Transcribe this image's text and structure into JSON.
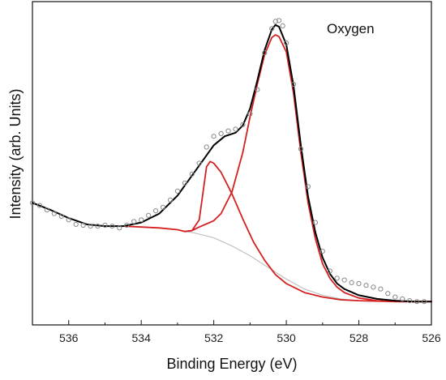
{
  "chart_data": {
    "type": "line",
    "title": "",
    "annotation": "Oxygen",
    "xlabel": "Binding Energy (eV)",
    "ylabel": "Intensity (arb. Units)",
    "xlim": [
      537,
      526
    ],
    "x_reversed": true,
    "ylim": [
      0,
      360
    ],
    "y_ticks_visible": false,
    "x_ticks": [
      536,
      534,
      532,
      530,
      528,
      526
    ],
    "x_tick_labels": [
      "536",
      "534",
      "532",
      "530",
      "528",
      "526"
    ],
    "grid": false,
    "legend": "none",
    "series": [
      {
        "role": "data-points",
        "style": "open-circles",
        "color": "#888888",
        "points": [
          [
            537.0,
            136
          ],
          [
            536.8,
            133
          ],
          [
            536.6,
            128
          ],
          [
            536.4,
            124
          ],
          [
            536.2,
            121
          ],
          [
            536.0,
            117
          ],
          [
            535.8,
            112
          ],
          [
            535.6,
            111
          ],
          [
            535.4,
            110
          ],
          [
            535.2,
            110
          ],
          [
            535.0,
            111
          ],
          [
            534.8,
            110
          ],
          [
            534.6,
            108
          ],
          [
            534.4,
            111
          ],
          [
            534.2,
            115
          ],
          [
            534.0,
            117
          ],
          [
            533.8,
            122
          ],
          [
            533.6,
            127
          ],
          [
            533.4,
            131
          ],
          [
            533.2,
            139
          ],
          [
            533.0,
            149
          ],
          [
            532.8,
            158
          ],
          [
            532.6,
            168
          ],
          [
            532.4,
            180
          ],
          [
            532.2,
            198
          ],
          [
            532.0,
            210
          ],
          [
            531.8,
            213
          ],
          [
            531.6,
            216
          ],
          [
            531.4,
            218
          ],
          [
            531.2,
            223
          ],
          [
            531.0,
            235
          ],
          [
            530.8,
            262
          ],
          [
            530.6,
            303
          ],
          [
            530.4,
            330
          ],
          [
            530.3,
            338
          ],
          [
            530.2,
            339
          ],
          [
            530.1,
            333
          ],
          [
            530.0,
            314
          ],
          [
            529.8,
            268
          ],
          [
            529.6,
            196
          ],
          [
            529.4,
            154
          ],
          [
            529.2,
            114
          ],
          [
            529.0,
            82
          ],
          [
            528.8,
            60
          ],
          [
            528.6,
            52
          ],
          [
            528.4,
            50
          ],
          [
            528.2,
            47
          ],
          [
            528.0,
            46
          ],
          [
            527.8,
            44
          ],
          [
            527.6,
            42
          ],
          [
            527.4,
            40
          ],
          [
            527.2,
            35
          ],
          [
            527.0,
            31
          ],
          [
            526.8,
            29
          ],
          [
            526.6,
            27
          ],
          [
            526.4,
            26
          ],
          [
            526.2,
            26
          ]
        ]
      },
      {
        "role": "envelope-fit",
        "color": "#000000",
        "points": [
          [
            537.0,
            136
          ],
          [
            536.5,
            128
          ],
          [
            536.0,
            119
          ],
          [
            535.5,
            112
          ],
          [
            535.0,
            110
          ],
          [
            534.5,
            110
          ],
          [
            534.0,
            114
          ],
          [
            533.5,
            124
          ],
          [
            533.0,
            144
          ],
          [
            532.5,
            172
          ],
          [
            532.0,
            200
          ],
          [
            531.7,
            210
          ],
          [
            531.4,
            214
          ],
          [
            531.2,
            222
          ],
          [
            531.0,
            241
          ],
          [
            530.8,
            272
          ],
          [
            530.6,
            306
          ],
          [
            530.4,
            329
          ],
          [
            530.3,
            334
          ],
          [
            530.2,
            332
          ],
          [
            530.0,
            312
          ],
          [
            529.8,
            266
          ],
          [
            529.6,
            200
          ],
          [
            529.4,
            143
          ],
          [
            529.2,
            103
          ],
          [
            529.0,
            75
          ],
          [
            528.8,
            57
          ],
          [
            528.6,
            46
          ],
          [
            528.4,
            40
          ],
          [
            528.0,
            33
          ],
          [
            527.5,
            29
          ],
          [
            527.0,
            27
          ],
          [
            526.5,
            26
          ],
          [
            526.0,
            26
          ]
        ]
      },
      {
        "role": "component-1",
        "color": "#d42020",
        "points": [
          [
            535.0,
            110
          ],
          [
            534.5,
            110
          ],
          [
            534.0,
            109
          ],
          [
            533.5,
            108
          ],
          [
            533.0,
            106
          ],
          [
            532.8,
            104
          ],
          [
            532.6,
            105
          ],
          [
            532.4,
            117
          ],
          [
            532.2,
            176
          ],
          [
            532.1,
            182
          ],
          [
            532.0,
            180
          ],
          [
            531.8,
            170
          ],
          [
            531.5,
            146
          ],
          [
            531.2,
            118
          ],
          [
            530.9,
            92
          ],
          [
            530.6,
            72
          ],
          [
            530.3,
            56
          ],
          [
            530.0,
            46
          ],
          [
            529.5,
            36
          ],
          [
            529.0,
            31
          ],
          [
            528.5,
            28
          ],
          [
            528.0,
            27
          ],
          [
            527.0,
            26
          ],
          [
            526.0,
            26
          ]
        ]
      },
      {
        "role": "component-2",
        "color": "#d42020",
        "points": [
          [
            532.8,
            104
          ],
          [
            532.6,
            105
          ],
          [
            532.4,
            109
          ],
          [
            532.0,
            116
          ],
          [
            531.8,
            124
          ],
          [
            531.5,
            148
          ],
          [
            531.2,
            192
          ],
          [
            531.0,
            232
          ],
          [
            530.8,
            268
          ],
          [
            530.6,
            301
          ],
          [
            530.4,
            320
          ],
          [
            530.3,
            323
          ],
          [
            530.2,
            321
          ],
          [
            530.0,
            304
          ],
          [
            529.8,
            258
          ],
          [
            529.6,
            192
          ],
          [
            529.4,
            136
          ],
          [
            529.2,
            96
          ],
          [
            529.0,
            68
          ],
          [
            528.8,
            52
          ],
          [
            528.6,
            42
          ],
          [
            528.4,
            36
          ],
          [
            528.0,
            30
          ],
          [
            527.5,
            27
          ],
          [
            527.0,
            26
          ],
          [
            526.0,
            26
          ]
        ]
      },
      {
        "role": "background",
        "color": "#bbbbbb",
        "points": [
          [
            534.5,
            110
          ],
          [
            534.0,
            109
          ],
          [
            533.5,
            108
          ],
          [
            533.0,
            106
          ],
          [
            532.5,
            102
          ],
          [
            532.0,
            97
          ],
          [
            531.5,
            88
          ],
          [
            531.0,
            77
          ],
          [
            530.5,
            64
          ],
          [
            530.0,
            51
          ],
          [
            529.5,
            40
          ],
          [
            529.0,
            33
          ],
          [
            528.5,
            29
          ],
          [
            528.0,
            27
          ],
          [
            527.0,
            26
          ],
          [
            526.0,
            26
          ]
        ]
      }
    ]
  }
}
